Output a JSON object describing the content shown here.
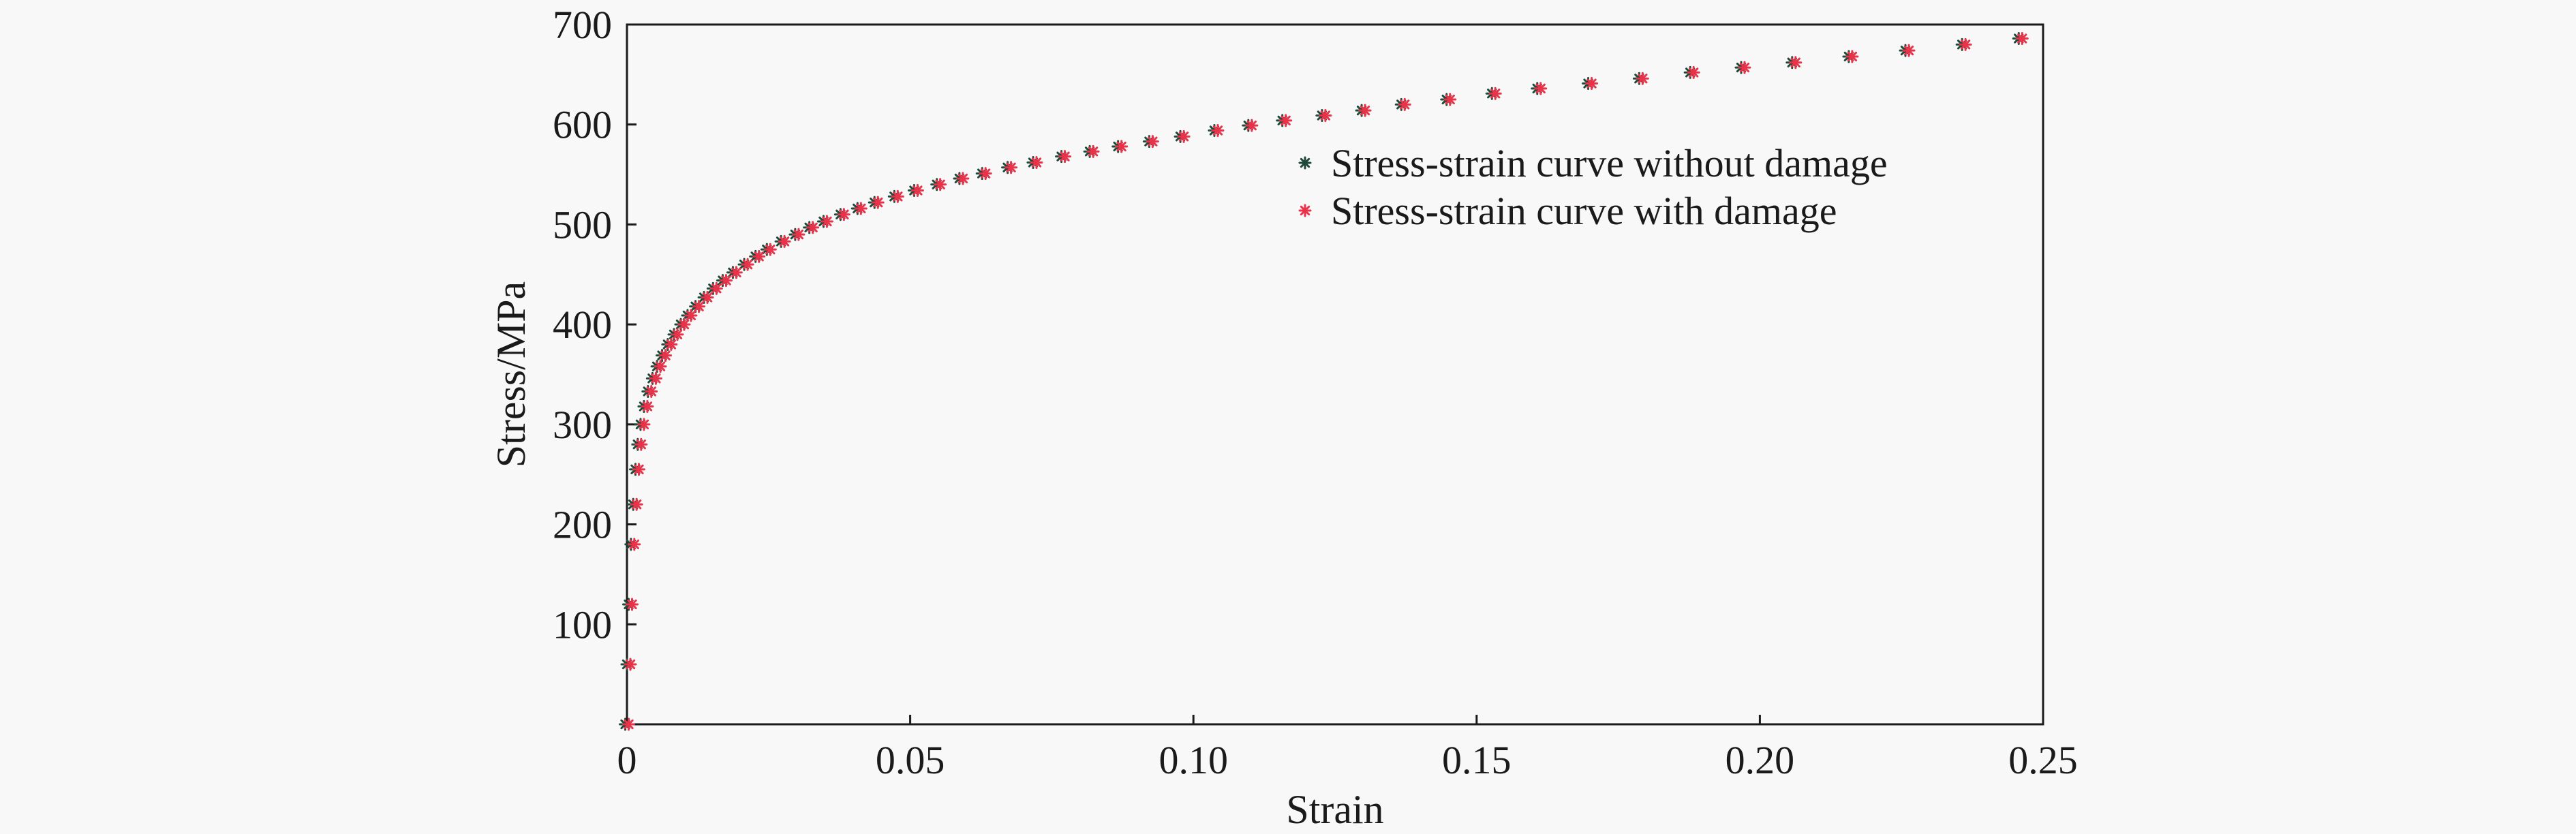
{
  "chart_data": {
    "type": "scatter",
    "xlabel": "Strain",
    "ylabel": "Stress/MPa",
    "xlim": [
      0,
      0.25
    ],
    "ylim": [
      0,
      700
    ],
    "x_ticks": [
      0,
      0.05,
      0.1,
      0.15,
      0.2,
      0.25
    ],
    "x_tick_labels": [
      "0",
      "0.05",
      "0.10",
      "0.15",
      "0.20",
      "0.25"
    ],
    "y_ticks": [
      100,
      200,
      300,
      400,
      500,
      600,
      700
    ],
    "y_tick_labels": [
      "100",
      "200",
      "300",
      "400",
      "500",
      "600",
      "700"
    ],
    "grid": false,
    "legend_position": "upper-right",
    "series": [
      {
        "name": "Stress-strain curve without damage",
        "color": "#1f4a3a",
        "marker": "asterisk",
        "x": [
          0,
          0.0003,
          0.0006,
          0.001,
          0.0014,
          0.0018,
          0.0022,
          0.0027,
          0.0033,
          0.004,
          0.0048,
          0.0056,
          0.0065,
          0.0075,
          0.0086,
          0.0098,
          0.011,
          0.0124,
          0.0139,
          0.0155,
          0.0172,
          0.019,
          0.021,
          0.023,
          0.025,
          0.0275,
          0.03,
          0.0325,
          0.035,
          0.038,
          0.041,
          0.044,
          0.0475,
          0.051,
          0.055,
          0.059,
          0.063,
          0.0675,
          0.072,
          0.077,
          0.082,
          0.087,
          0.0925,
          0.098,
          0.104,
          0.11,
          0.116,
          0.123,
          0.13,
          0.137,
          0.145,
          0.153,
          0.161,
          0.17,
          0.179,
          0.188,
          0.197,
          0.206,
          0.216,
          0.226,
          0.236,
          0.246
        ],
        "y": [
          0,
          60,
          120,
          180,
          220,
          255,
          280,
          300,
          318,
          333,
          346,
          358,
          369,
          380,
          390,
          400,
          409,
          418,
          427,
          436,
          444,
          452,
          460,
          468,
          475,
          483,
          490,
          497,
          503,
          510,
          516,
          522,
          528,
          534,
          540,
          546,
          551,
          557,
          562,
          568,
          573,
          578,
          583,
          588,
          594,
          599,
          604,
          609,
          614,
          620,
          625,
          631,
          636,
          641,
          646,
          652,
          657,
          662,
          668,
          674,
          680,
          686
        ]
      },
      {
        "name": "Stress-strain curve with damage",
        "color": "#e8334a",
        "marker": "asterisk",
        "x": [
          0,
          0.0003,
          0.0006,
          0.001,
          0.0014,
          0.0018,
          0.0022,
          0.0027,
          0.0033,
          0.004,
          0.0048,
          0.0056,
          0.0065,
          0.0075,
          0.0086,
          0.0098,
          0.011,
          0.0124,
          0.0139,
          0.0155,
          0.0172,
          0.019,
          0.021,
          0.023,
          0.025,
          0.0275,
          0.03,
          0.0325,
          0.035,
          0.038,
          0.041,
          0.044,
          0.0475,
          0.051,
          0.055,
          0.059,
          0.063,
          0.0675,
          0.072,
          0.077,
          0.082,
          0.087,
          0.0925,
          0.098,
          0.104,
          0.11,
          0.116,
          0.123,
          0.13,
          0.137,
          0.145,
          0.153,
          0.161,
          0.17,
          0.179,
          0.188,
          0.197,
          0.206,
          0.216,
          0.226,
          0.236,
          0.246
        ],
        "y": [
          0,
          60,
          120,
          180,
          220,
          255,
          280,
          300,
          318,
          333,
          346,
          358,
          369,
          380,
          390,
          400,
          409,
          418,
          427,
          436,
          444,
          452,
          460,
          468,
          475,
          483,
          490,
          497,
          503,
          510,
          516,
          522,
          528,
          534,
          540,
          546,
          551,
          557,
          562,
          568,
          573,
          578,
          583,
          588,
          594,
          599,
          604,
          609,
          614,
          620,
          625,
          631,
          636,
          641,
          646,
          652,
          657,
          662,
          668,
          674,
          680,
          686
        ]
      }
    ]
  }
}
